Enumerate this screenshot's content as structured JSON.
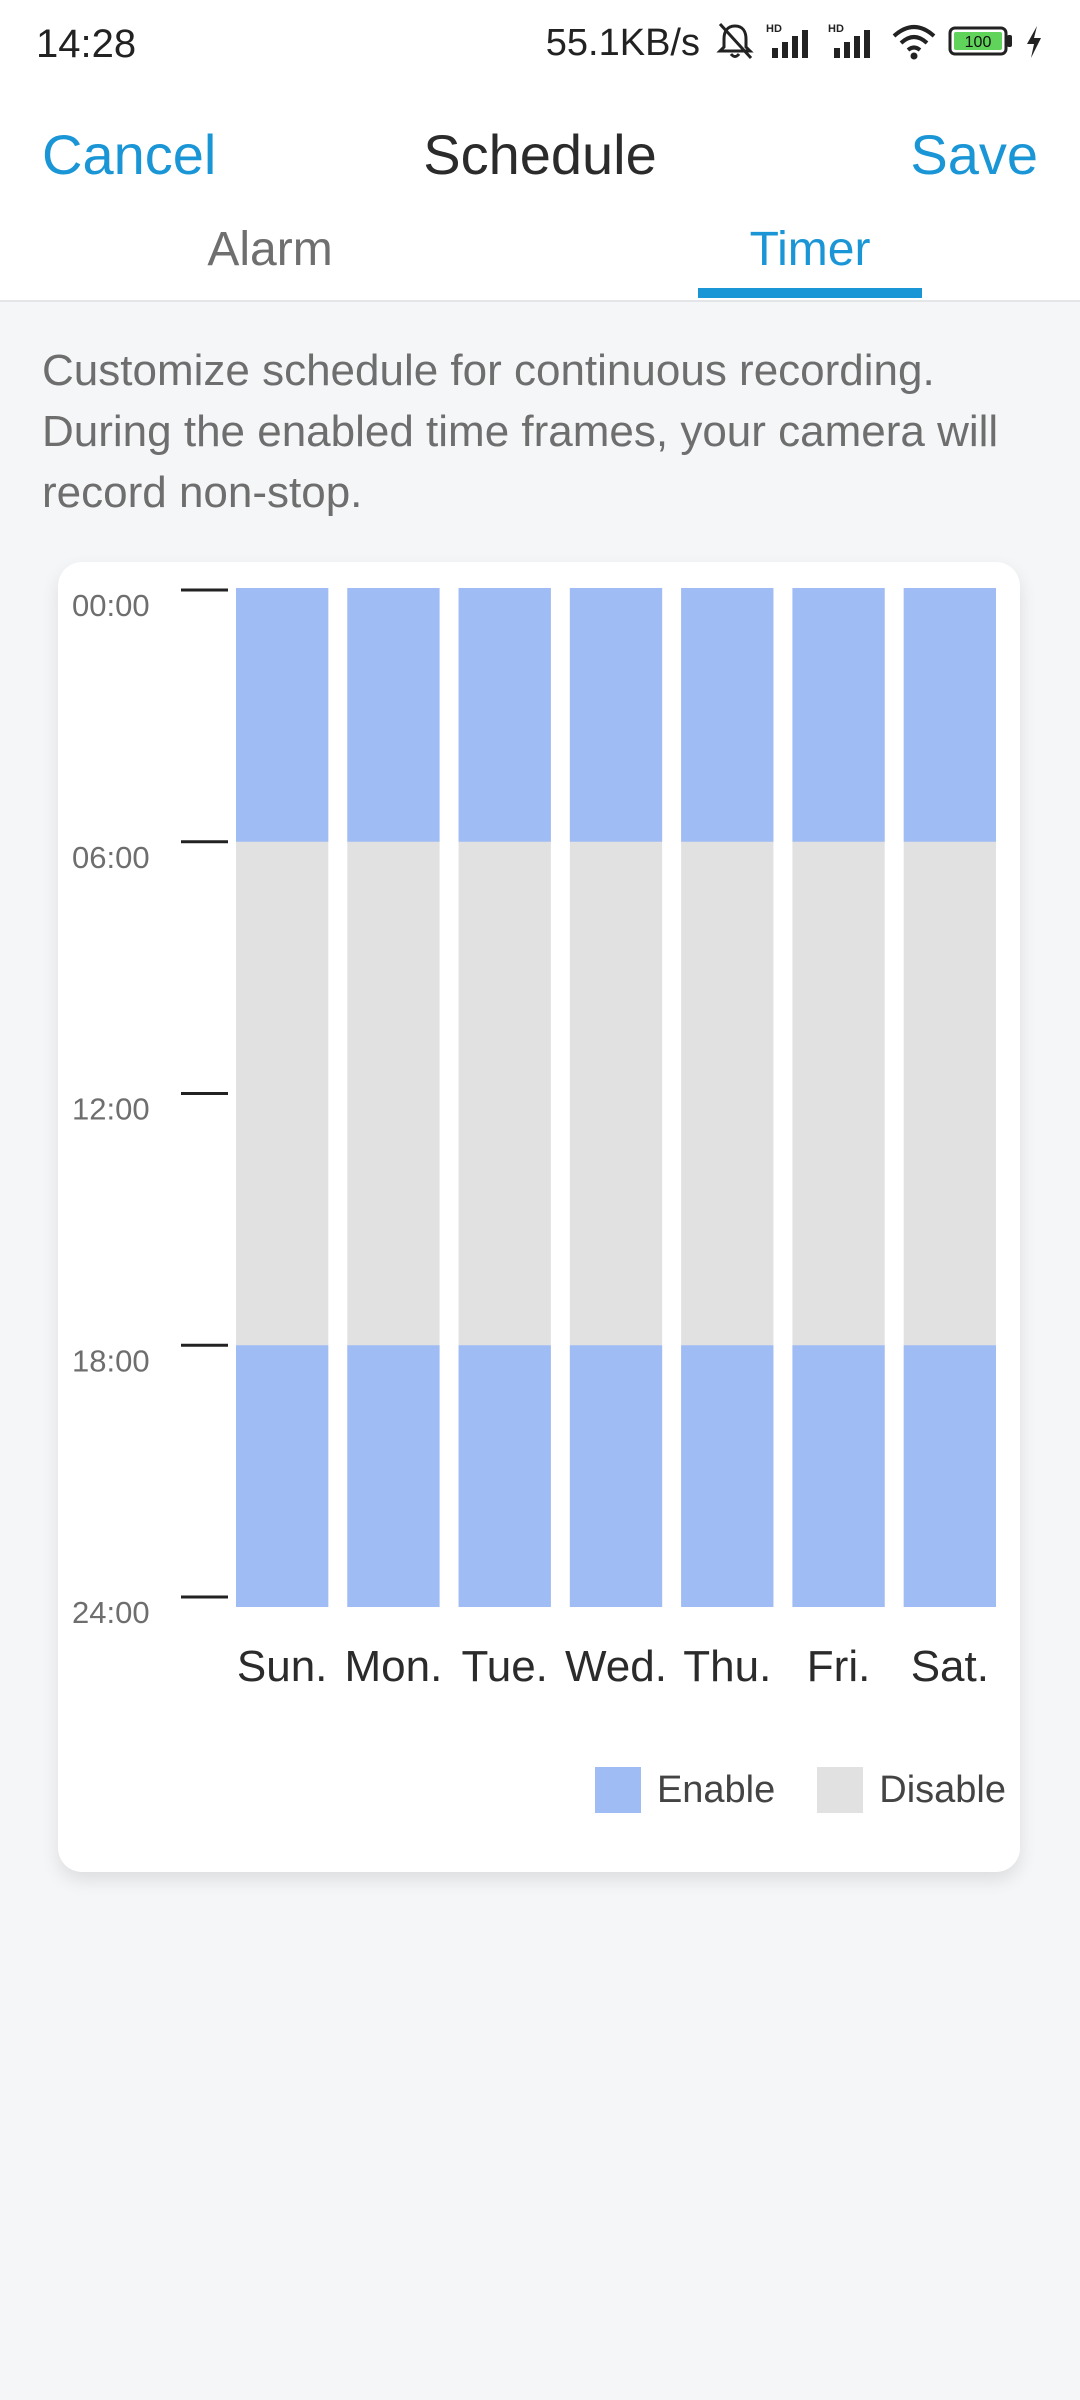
{
  "status_bar": {
    "time": "14:28",
    "net_speed": "55.1KB/s",
    "battery": "100",
    "icons": [
      "bell-mute-icon",
      "hd-signal-icon",
      "hd-signal-icon",
      "wifi-icon",
      "battery-icon",
      "charging-icon"
    ]
  },
  "header": {
    "cancel_label": "Cancel",
    "title": "Schedule",
    "save_label": "Save"
  },
  "tabs": [
    {
      "label": "Alarm",
      "active": false
    },
    {
      "label": "Timer",
      "active": true
    }
  ],
  "description": "Customize schedule for continuous recording. During the enabled time frames, your camera will record non-stop.",
  "colors": {
    "accent": "#1a96d6",
    "enable": "#a0bcf4",
    "disable": "#e1e1e1"
  },
  "legend": {
    "enable_label": "Enable",
    "disable_label": "Disable"
  },
  "chart_data": {
    "type": "bar",
    "y_ticks": [
      "00:00",
      "06:00",
      "12:00",
      "18:00",
      "24:00"
    ],
    "ylim": [
      0,
      24
    ],
    "categories": [
      "Sun.",
      "Mon.",
      "Tue.",
      "Wed.",
      "Thu.",
      "Fri.",
      "Sat."
    ],
    "enabled_ranges_hours": [
      [
        0,
        6
      ],
      [
        18,
        24
      ]
    ],
    "series": [
      {
        "name": "Enable",
        "days": [
          [
            [
              0,
              6
            ],
            [
              18,
              24
            ]
          ],
          [
            [
              0,
              6
            ],
            [
              18,
              24
            ]
          ],
          [
            [
              0,
              6
            ],
            [
              18,
              24
            ]
          ],
          [
            [
              0,
              6
            ],
            [
              18,
              24
            ]
          ],
          [
            [
              0,
              6
            ],
            [
              18,
              24
            ]
          ],
          [
            [
              0,
              6
            ],
            [
              18,
              24
            ]
          ],
          [
            [
              0,
              6
            ],
            [
              18,
              24
            ]
          ]
        ]
      }
    ]
  }
}
